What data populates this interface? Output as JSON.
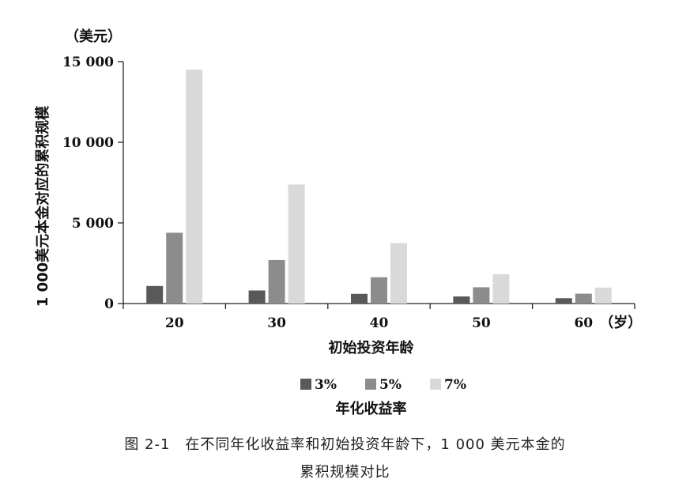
{
  "chart_data": {
    "type": "bar",
    "categories": [
      "20",
      "30",
      "40",
      "50",
      "60"
    ],
    "series": [
      {
        "name": "3%",
        "color": "#595959",
        "values": [
          1090,
          810,
          600,
          440,
          330
        ]
      },
      {
        "name": "5%",
        "color": "#8c8c8c",
        "values": [
          4390,
          2700,
          1630,
          1010,
          610
        ]
      },
      {
        "name": "7%",
        "color": "#d9d9d9",
        "values": [
          14500,
          7380,
          3750,
          1820,
          990
        ]
      }
    ],
    "yticks": [
      {
        "value": 0,
        "label": "0"
      },
      {
        "value": 5000,
        "label": "5 000"
      },
      {
        "value": 10000,
        "label": "10 000"
      },
      {
        "value": 15000,
        "label": "15 000"
      }
    ],
    "ylim": [
      0,
      15000
    ],
    "y_unit": "（美元）",
    "x_unit": "（岁）",
    "xlabel": "初始投资年龄",
    "ylabel": "1 000美元本金对应的累积规模",
    "legend_title": "年化收益率",
    "legend_position": "bottom"
  },
  "caption": {
    "line1": "图 2-1　在不同年化收益率和初始投资年龄下，1 000 美元本金的",
    "line2": "累积规模对比"
  }
}
